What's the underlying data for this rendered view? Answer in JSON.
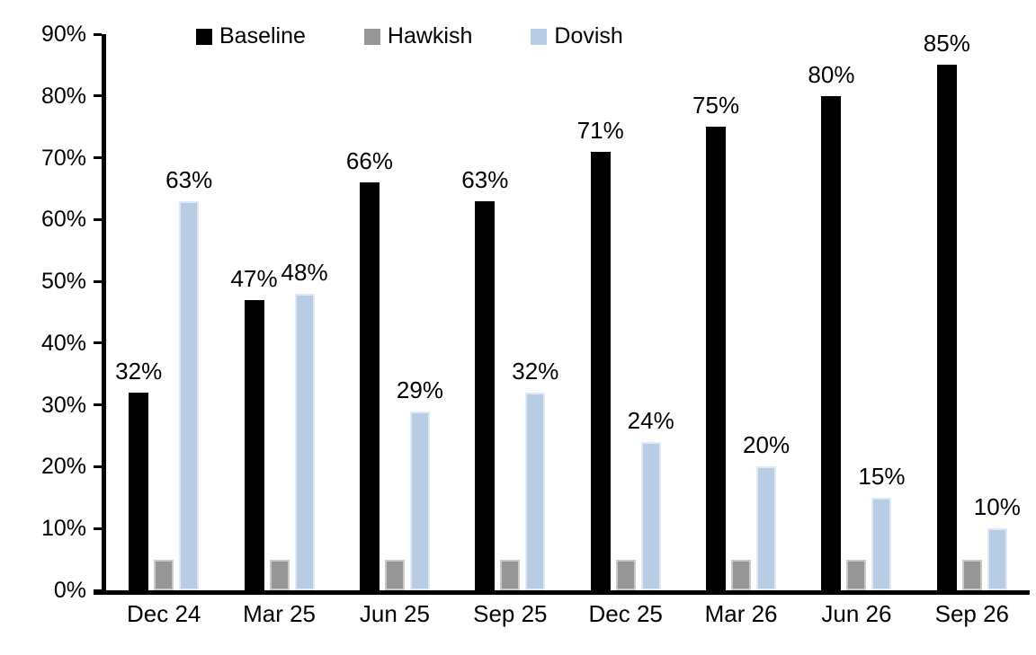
{
  "chart_data": {
    "type": "bar",
    "title": "",
    "xlabel": "",
    "ylabel": "",
    "categories": [
      "Dec 24",
      "Mar 25",
      "Jun 25",
      "Sep 25",
      "Dec 25",
      "Mar 26",
      "Jun 26",
      "Sep 26"
    ],
    "series": [
      {
        "name": "Baseline",
        "color": "#000000",
        "edge_color": "#000000",
        "values": [
          32,
          47,
          66,
          63,
          71,
          75,
          80,
          85
        ],
        "show_value_labels": true
      },
      {
        "name": "Hawkish",
        "color": "#969696",
        "edge_color": "#c9c9c9",
        "values": [
          5,
          5,
          5,
          5,
          5,
          5,
          5,
          5
        ],
        "show_value_labels": false
      },
      {
        "name": "Dovish",
        "color": "#B8CCE4",
        "edge_color": "#dfe8f4",
        "values": [
          63,
          48,
          29,
          32,
          24,
          20,
          15,
          10
        ],
        "show_value_labels": true
      }
    ],
    "value_label_suffix": "%",
    "ylim": [
      0,
      90
    ],
    "ytick_step": 10,
    "ytick_labels": [
      "0%",
      "10%",
      "20%",
      "30%",
      "40%",
      "50%",
      "60%",
      "70%",
      "80%",
      "90%"
    ],
    "legend_position": "top",
    "grid": false,
    "axis_color": "#000000"
  }
}
